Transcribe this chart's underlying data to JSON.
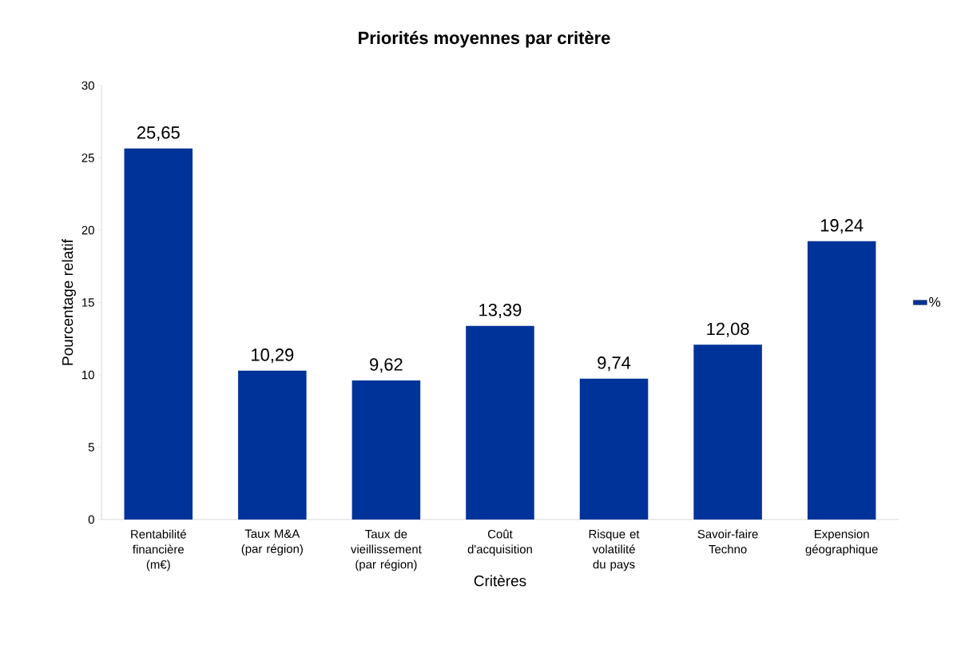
{
  "chart_data": {
    "type": "bar",
    "title": "Priorités moyennes par critère",
    "xlabel": "Critères",
    "ylabel": "Pourcentage relatif",
    "categories": [
      "Rentabilité financière (m€)",
      "Taux M&A (par région)",
      "Taux de vieillissement (par région)",
      "Coût d'acquisition",
      "Risque et volatilité du pays",
      "Savoir-faire Techno",
      "Expension géographique"
    ],
    "series": [
      {
        "name": "%",
        "color": "#003399",
        "values": [
          25.65,
          10.29,
          9.62,
          13.39,
          9.74,
          12.08,
          19.24
        ],
        "value_labels": [
          "25,65",
          "10,29",
          "9,62",
          "13,39",
          "9,74",
          "12,08",
          "19,24"
        ]
      }
    ],
    "ylim": [
      0,
      30
    ],
    "yticks": [
      0,
      5,
      10,
      15,
      20,
      25,
      30
    ],
    "grid": false,
    "legend": "right"
  }
}
